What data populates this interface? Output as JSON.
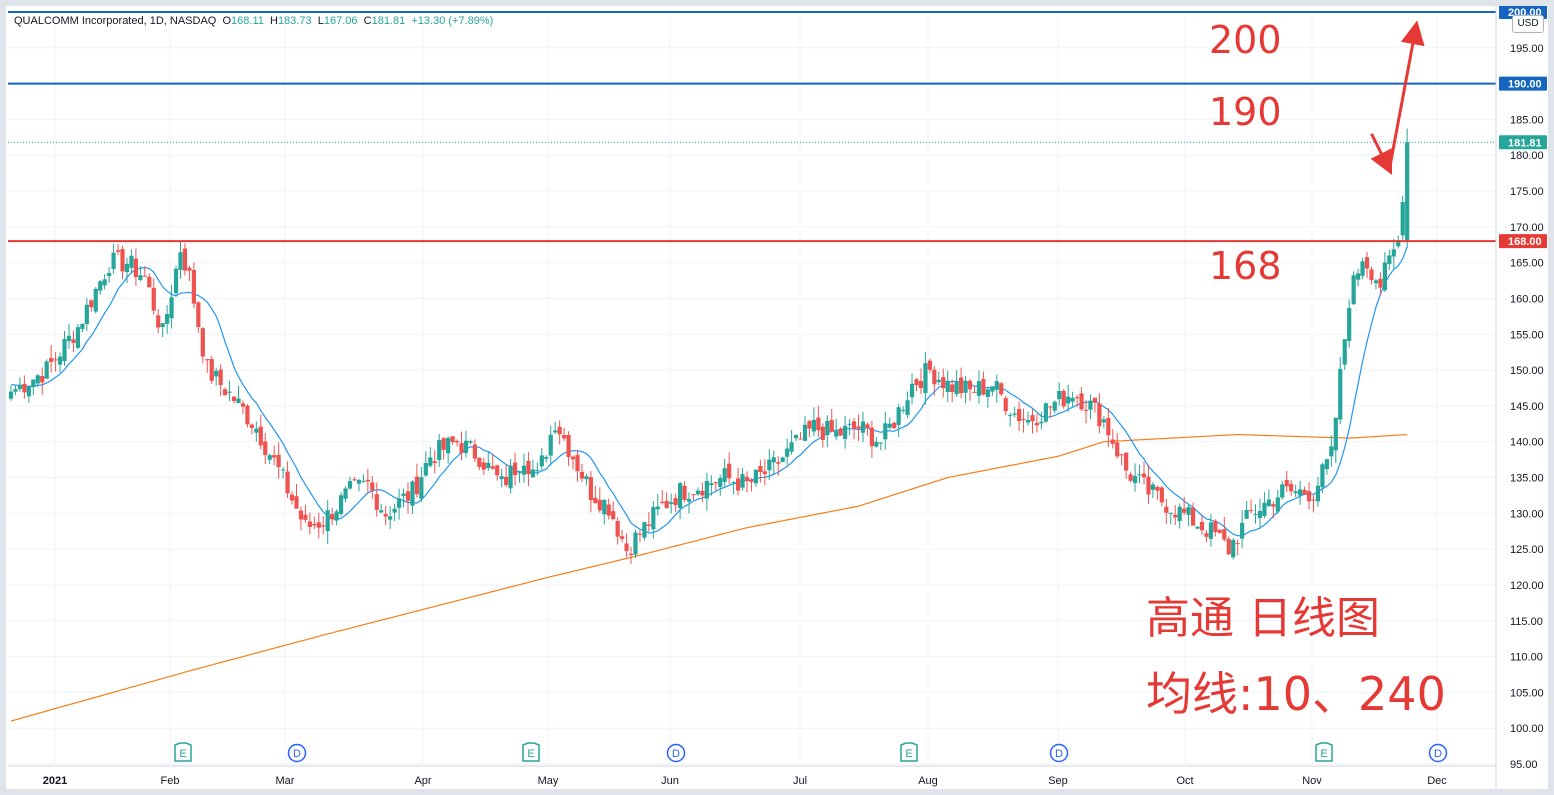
{
  "header": {
    "symbol": "QUALCOMM Incorporated, 1D, NASDAQ",
    "o_label": "O",
    "o_value": "168.11",
    "h_label": "H",
    "h_value": "183.73",
    "l_label": "L",
    "l_value": "167.06",
    "c_label": "C",
    "c_value": "181.81",
    "change": "+13.30 (+7.89%)"
  },
  "currency": "USD",
  "annotations": {
    "level_200": "200",
    "level_190": "190",
    "level_168": "168",
    "caption_line1": "高通 日线图",
    "caption_line2": "均线:10、240"
  },
  "colors": {
    "up": "#26a69a",
    "down": "#ef5350",
    "ma10": "#2196f3",
    "ma240": "#f57f17",
    "hline_blue": "#1565c0",
    "hline_red": "#e53935",
    "annotation": "#e53935"
  },
  "chart_data": {
    "type": "candlestick",
    "y_axis": {
      "side": "right",
      "range": [
        95,
        200
      ],
      "ticks": [
        "95.00",
        "100.00",
        "105.00",
        "110.00",
        "115.00",
        "120.00",
        "125.00",
        "130.00",
        "135.00",
        "140.00",
        "145.00",
        "150.00",
        "155.00",
        "160.00",
        "165.00",
        "170.00",
        "175.00",
        "180.00",
        "185.00",
        "190.00",
        "195.00"
      ]
    },
    "x_axis": {
      "labels": [
        "2021",
        "Feb",
        "Mar",
        "Apr",
        "May",
        "Jun",
        "Jul",
        "Aug",
        "Sep",
        "Oct",
        "Nov",
        "Dec"
      ]
    },
    "price_labels": [
      {
        "text": "200.00",
        "value": 200,
        "color": "#1565c0"
      },
      {
        "text": "190.00",
        "value": 190,
        "color": "#1565c0"
      },
      {
        "text": "181.81",
        "value": 181.81,
        "color": "#26a69a"
      },
      {
        "text": "168.00",
        "value": 168,
        "color": "#e53935"
      }
    ],
    "horizontal_lines": [
      {
        "value": 200,
        "color": "#1565c0"
      },
      {
        "value": 190,
        "color": "#1565c0"
      },
      {
        "value": 168,
        "color": "#e53935"
      }
    ],
    "last_close": 181.81,
    "events": [
      {
        "label": "E",
        "month": "Feb"
      },
      {
        "label": "D",
        "month": "Mar"
      },
      {
        "label": "E",
        "month": "May"
      },
      {
        "label": "D",
        "month": "Jun"
      },
      {
        "label": "E",
        "month": "Aug"
      },
      {
        "label": "D",
        "month": "Sep"
      },
      {
        "label": "E",
        "month": "Nov"
      },
      {
        "label": "D",
        "month": "Dec"
      }
    ],
    "close_waypoints": [
      [
        0,
        147
      ],
      [
        8,
        150
      ],
      [
        15,
        156
      ],
      [
        22,
        165
      ],
      [
        26,
        165
      ],
      [
        30,
        163
      ],
      [
        34,
        155
      ],
      [
        38,
        167
      ],
      [
        40,
        163
      ],
      [
        44,
        150
      ],
      [
        50,
        146
      ],
      [
        55,
        142
      ],
      [
        60,
        136
      ],
      [
        66,
        128
      ],
      [
        70,
        129
      ],
      [
        76,
        133
      ],
      [
        80,
        134
      ],
      [
        84,
        130
      ],
      [
        90,
        133
      ],
      [
        94,
        138
      ],
      [
        100,
        140
      ],
      [
        105,
        138
      ],
      [
        110,
        134
      ],
      [
        115,
        138
      ],
      [
        118,
        135
      ],
      [
        122,
        143
      ],
      [
        126,
        138
      ],
      [
        130,
        133
      ],
      [
        134,
        131
      ],
      [
        138,
        125
      ],
      [
        142,
        128
      ],
      [
        146,
        131
      ],
      [
        150,
        133
      ],
      [
        155,
        134
      ],
      [
        160,
        135
      ],
      [
        165,
        134
      ],
      [
        170,
        136
      ],
      [
        175,
        139
      ],
      [
        180,
        142
      ],
      [
        185,
        141
      ],
      [
        190,
        142
      ],
      [
        195,
        140
      ],
      [
        198,
        143
      ],
      [
        202,
        148
      ],
      [
        206,
        150
      ],
      [
        210,
        148
      ],
      [
        215,
        147
      ],
      [
        220,
        148
      ],
      [
        225,
        144
      ],
      [
        228,
        143
      ],
      [
        233,
        145
      ],
      [
        238,
        147
      ],
      [
        242,
        145
      ],
      [
        245,
        143
      ],
      [
        250,
        136
      ],
      [
        255,
        133
      ],
      [
        260,
        131
      ],
      [
        265,
        129
      ],
      [
        270,
        127
      ],
      [
        273,
        125
      ],
      [
        278,
        130
      ],
      [
        285,
        133
      ],
      [
        292,
        133
      ],
      [
        296,
        138
      ],
      [
        300,
        160
      ],
      [
        303,
        166
      ],
      [
        307,
        162
      ],
      [
        311,
        168
      ],
      [
        313,
        181.81
      ]
    ],
    "ma10_start": 148,
    "ma240_start": 101,
    "ma240_waypoints": [
      [
        0,
        101
      ],
      [
        40,
        108
      ],
      [
        70,
        113
      ],
      [
        95,
        117
      ],
      [
        120,
        121
      ],
      [
        140,
        124
      ],
      [
        165,
        128
      ],
      [
        190,
        131
      ],
      [
        210,
        135
      ],
      [
        235,
        138
      ],
      [
        245,
        140
      ],
      [
        275,
        141
      ],
      [
        300,
        140.5
      ],
      [
        313,
        141
      ]
    ],
    "arrows": [
      {
        "from": [
          305,
          183
        ],
        "to": [
          309,
          178
        ],
        "color": "#e53935"
      },
      {
        "from": [
          309,
          178
        ],
        "to": [
          315,
          198
        ],
        "color": "#e53935"
      }
    ]
  }
}
